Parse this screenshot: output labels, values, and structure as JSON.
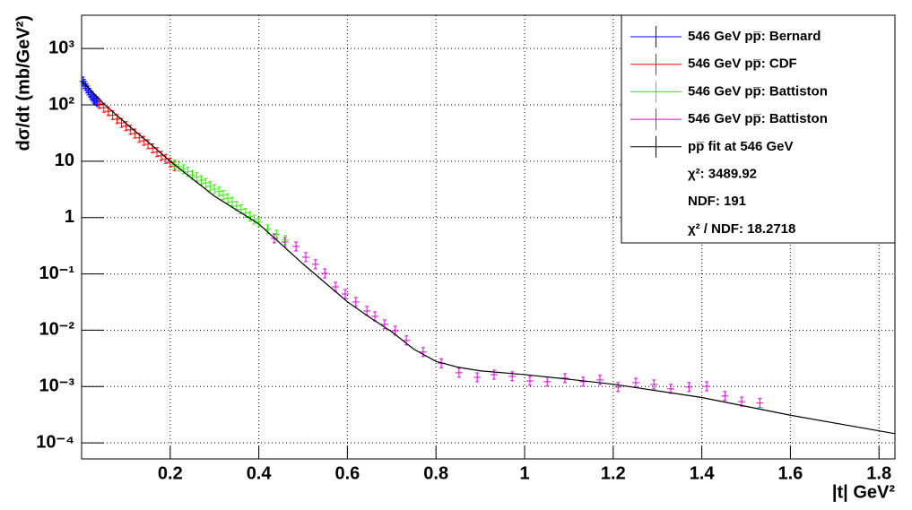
{
  "chart_data": {
    "type": "scatter",
    "xlabel": "|t| GeV²",
    "ylabel": "dσ/dt (mb/GeV²)",
    "xlim": [
      0,
      1.836
    ],
    "ylim": [
      5.2e-05,
      3900
    ],
    "ylog": true,
    "grid": true,
    "legend": "upper right",
    "xticks": [
      0.2,
      0.4,
      0.6,
      0.8,
      1,
      1.2,
      1.4,
      1.6,
      1.8
    ],
    "yticks": [
      {
        "value": 0.0001,
        "label": "10⁻⁴"
      },
      {
        "value": 0.001,
        "label": "10⁻³"
      },
      {
        "value": 0.01,
        "label": "10⁻²"
      },
      {
        "value": 0.1,
        "label": "10⁻¹"
      },
      1,
      10,
      {
        "value": 100,
        "label": "10²"
      },
      {
        "value": 1000,
        "label": "10³"
      }
    ],
    "series": [
      {
        "name": "546 GeV pp̅: Bernard",
        "color": "#0000ff",
        "marker": "cross",
        "x": [
          0.003,
          0.006,
          0.009,
          0.012,
          0.015,
          0.018,
          0.021,
          0.024,
          0.027,
          0.03,
          0.033,
          0.036
        ],
        "values": [
          260,
          235,
          215,
          195,
          180,
          165,
          150,
          140,
          130,
          125,
          118,
          112
        ]
      },
      {
        "name": "546 GeV pp̅: CDF",
        "color": "#ff0000",
        "marker": "cross",
        "x": [
          0.04,
          0.05,
          0.06,
          0.07,
          0.08,
          0.09,
          0.1,
          0.11,
          0.12,
          0.13,
          0.14,
          0.15,
          0.16,
          0.17,
          0.18,
          0.19,
          0.2,
          0.21
        ],
        "values": [
          104,
          89,
          77,
          66,
          56,
          48,
          42,
          36,
          31,
          26,
          23,
          20,
          17,
          14.5,
          12.5,
          11,
          9.5,
          8.2
        ]
      },
      {
        "name": "546 GeV pp̅: Battiston",
        "color": "#33ee00",
        "marker": "cross",
        "x": [
          0.21,
          0.22,
          0.23,
          0.24,
          0.25,
          0.26,
          0.27,
          0.28,
          0.29,
          0.3,
          0.31,
          0.32,
          0.33,
          0.34,
          0.35,
          0.36,
          0.37,
          0.38,
          0.39,
          0.4,
          0.42,
          0.44,
          0.46
        ],
        "values": [
          8.8,
          8.0,
          7.2,
          6.5,
          5.7,
          5.2,
          4.6,
          4.1,
          3.6,
          3.2,
          2.9,
          2.5,
          2.2,
          1.9,
          1.6,
          1.4,
          1.2,
          1.05,
          0.92,
          0.83,
          0.62,
          0.5,
          0.4
        ]
      },
      {
        "name": "546 GeV pp̅: Battiston",
        "color": "#dd00dd",
        "marker": "cross",
        "x": [
          0.435,
          0.459,
          0.484,
          0.506,
          0.528,
          0.549,
          0.573,
          0.595,
          0.619,
          0.644,
          0.662,
          0.684,
          0.708,
          0.733,
          0.771,
          0.812,
          0.852,
          0.893,
          0.931,
          0.972,
          1.012,
          1.051,
          1.091,
          1.132,
          1.17,
          1.211,
          1.251,
          1.292,
          1.33,
          1.371,
          1.411,
          1.452,
          1.49,
          1.531
        ],
        "values": [
          0.427,
          0.368,
          0.307,
          0.198,
          0.148,
          0.102,
          0.059,
          0.044,
          0.0317,
          0.022,
          0.0176,
          0.0127,
          0.0098,
          0.0066,
          0.0041,
          0.0026,
          0.00176,
          0.00146,
          0.00163,
          0.00152,
          0.00126,
          0.00122,
          0.00141,
          0.00122,
          0.00131,
          0.00098,
          0.00117,
          0.00109,
          0.00091,
          0.00098,
          0.00101,
          0.00068,
          0.00054,
          0.00051
        ]
      },
      {
        "name": "pp̅ fit at 546 GeV",
        "color": "#000000",
        "marker": "line",
        "x": [
          0,
          0.05,
          0.1,
          0.15,
          0.2,
          0.3,
          0.4,
          0.5,
          0.6,
          0.65,
          0.7,
          0.75,
          0.8,
          0.85,
          0.9,
          1,
          1.1,
          1.2,
          1.4,
          1.6,
          1.836
        ],
        "values": [
          267,
          105,
          47,
          22,
          10,
          2.4,
          0.77,
          0.15,
          0.032,
          0.017,
          0.0094,
          0.0046,
          0.0028,
          0.0022,
          0.0019,
          0.00163,
          0.00135,
          0.0011,
          0.00064,
          0.00031,
          0.000146
        ]
      }
    ],
    "annotations": [
      "χ²: 3489.92",
      "NDF: 191",
      "χ² / NDF: 18.2718"
    ]
  }
}
